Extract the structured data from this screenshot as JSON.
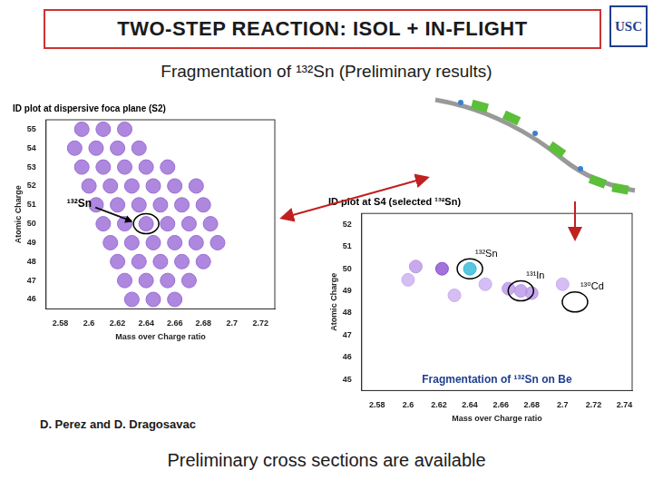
{
  "slide": {
    "title": "TWO-STEP REACTION: ISOL + IN-FLIGHT",
    "logo": "USC",
    "subtitle": "Fragmentation of ¹³²Sn (Preliminary results)",
    "authors": "D. Perez and D. Dragosavac",
    "footer": "Preliminary cross sections are available"
  },
  "chart_data": [
    {
      "type": "scatter",
      "title": "ID plot at dispersive foca plane (S2)",
      "x_label": "Mass over Charge ratio",
      "y_label": "Atomic Charge",
      "x": [
        2.595,
        2.61,
        2.625,
        2.59,
        2.605,
        2.62,
        2.635,
        2.595,
        2.61,
        2.625,
        2.64,
        2.655,
        2.6,
        2.615,
        2.63,
        2.645,
        2.66,
        2.675,
        2.605,
        2.62,
        2.635,
        2.65,
        2.665,
        2.68,
        2.61,
        2.625,
        2.64,
        2.655,
        2.67,
        2.685,
        2.615,
        2.63,
        2.645,
        2.66,
        2.675,
        2.69,
        2.62,
        2.635,
        2.65,
        2.665,
        2.68,
        2.625,
        2.64,
        2.655,
        2.67,
        2.63,
        2.645,
        2.66
      ],
      "values": [
        55,
        55,
        55,
        54,
        54,
        54,
        54,
        53,
        53,
        53,
        53,
        53,
        52,
        52,
        52,
        52,
        52,
        52,
        51,
        51,
        51,
        51,
        51,
        51,
        50,
        50,
        50,
        50,
        50,
        50,
        49,
        49,
        49,
        49,
        49,
        49,
        48,
        48,
        48,
        48,
        48,
        47,
        47,
        47,
        47,
        46,
        46,
        46
      ],
      "color": "#9a6ad6",
      "marker": "circle",
      "grid": false,
      "xlim": [
        2.57,
        2.73
      ],
      "ylim": [
        45.5,
        55.5
      ],
      "xticks": [
        2.58,
        2.6,
        2.62,
        2.64,
        2.66,
        2.68,
        2.7,
        2.72
      ],
      "yticks": [
        46,
        47,
        48,
        49,
        50,
        51,
        52,
        53,
        54,
        55
      ],
      "annotations": [
        {
          "text": "¹³²Sn",
          "x": 2.64,
          "y": 50
        }
      ]
    },
    {
      "type": "scatter",
      "title": "ID plot at S4 (selected ¹³²Sn)",
      "x_label": "Mass over Charge ratio",
      "y_label": "Atomic Charge",
      "x": [
        2.64,
        2.622,
        2.605,
        2.673,
        2.665,
        2.68,
        2.6,
        2.65,
        2.63,
        2.7
      ],
      "values": [
        50,
        50,
        50.1,
        49,
        49.1,
        48.9,
        49.5,
        49.3,
        48.8,
        49.3
      ],
      "colors": [
        "#2fb8d8",
        "#8a4fd0",
        "#b995e6",
        "#b995e6",
        "#b995e6",
        "#b995e6",
        "#c9aef0",
        "#c9aef0",
        "#c9aef0",
        "#c9aef0"
      ],
      "marker": "circle",
      "grid": false,
      "xlim": [
        2.57,
        2.745
      ],
      "ylim": [
        44.5,
        52.5
      ],
      "xticks": [
        2.58,
        2.6,
        2.62,
        2.64,
        2.66,
        2.68,
        2.7,
        2.72,
        2.74
      ],
      "yticks": [
        45,
        46,
        47,
        48,
        49,
        50,
        51,
        52
      ],
      "annotations": [
        {
          "text": "¹³²Sn",
          "x": 2.64,
          "y": 50
        },
        {
          "text": "¹³¹In",
          "x": 2.673,
          "y": 49
        },
        {
          "text": "¹³⁰Cd",
          "x": 2.708,
          "y": 48.5
        }
      ],
      "note": "Fragmentation of ¹³²Sn on Be"
    }
  ]
}
